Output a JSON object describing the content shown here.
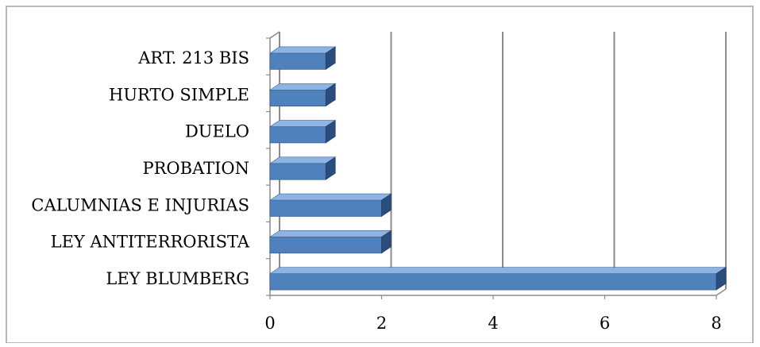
{
  "chart_data": {
    "type": "bar",
    "orientation": "horizontal",
    "style": "3d",
    "categories": [
      "LEY BLUMBERG",
      "LEY ANTITERRORISTA",
      "CALUMNIAS E INJURIAS",
      "PROBATION",
      "DUELO",
      "HURTO SIMPLE",
      "ART. 213 BIS"
    ],
    "values": [
      8,
      2,
      2,
      1,
      1,
      1,
      1
    ],
    "xlim": [
      0,
      8
    ],
    "xticks": [
      "0",
      "2",
      "4",
      "6",
      "8"
    ],
    "title": "",
    "xlabel": "",
    "ylabel": "",
    "grid": "vertical",
    "legend": "none",
    "colors": {
      "bar_front": "#4F81BD",
      "bar_top": "#8EB4E3",
      "bar_side": "#2A4D7E",
      "grid": "#8C8C8C",
      "border": "#A0A0A0"
    }
  }
}
